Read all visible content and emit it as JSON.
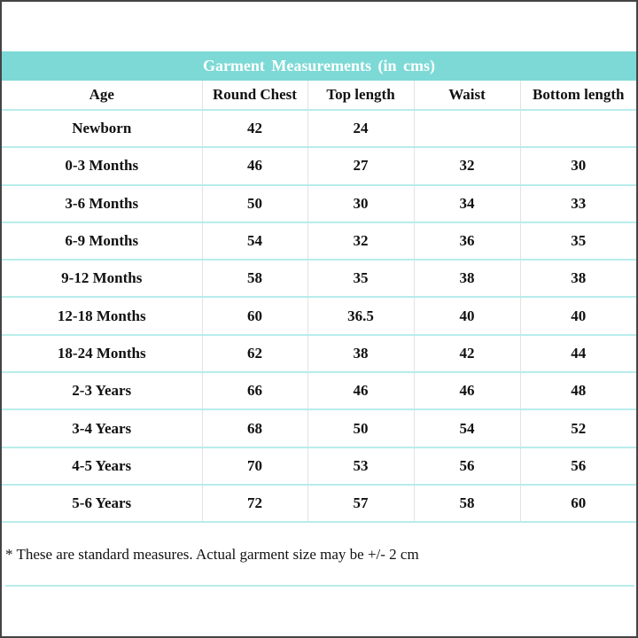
{
  "title": "Garment  Measurements (in cms)",
  "columns": [
    "Age",
    "Round Chest",
    "Top length",
    "Waist",
    "Bottom length"
  ],
  "rows": [
    [
      "Newborn",
      "42",
      "24",
      "",
      ""
    ],
    [
      "0-3 Months",
      "46",
      "27",
      "32",
      "30"
    ],
    [
      "3-6 Months",
      "50",
      "30",
      "34",
      "33"
    ],
    [
      "6-9 Months",
      "54",
      "32",
      "36",
      "35"
    ],
    [
      "9-12 Months",
      "58",
      "35",
      "38",
      "38"
    ],
    [
      "12-18 Months",
      "60",
      "36.5",
      "40",
      "40"
    ],
    [
      "18-24 Months",
      "62",
      "38",
      "42",
      "44"
    ],
    [
      "2-3 Years",
      "66",
      "46",
      "46",
      "48"
    ],
    [
      "3-4 Years",
      "68",
      "50",
      "54",
      "52"
    ],
    [
      "4-5 Years",
      "70",
      "53",
      "56",
      "56"
    ],
    [
      "5-6 Years",
      "72",
      "57",
      "58",
      "60"
    ]
  ],
  "footnote": "* These are standard measures. Actual garment size may be +/- 2 cm",
  "colors": {
    "accent": "#7dd9d6",
    "row_line": "#b8eceb"
  }
}
